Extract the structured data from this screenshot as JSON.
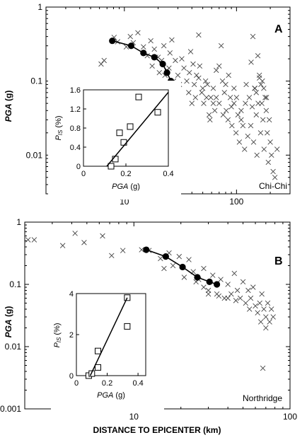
{
  "chart_data": [
    {
      "panel": "A",
      "type": "scatter",
      "annotation": "Chi-Chi",
      "xscale": "log",
      "yscale": "log",
      "xlim": [
        2,
        300
      ],
      "ylim": [
        0.003,
        1
      ],
      "xticks": [
        10,
        100
      ],
      "yticks": [
        1,
        0.1,
        0.01
      ],
      "ylabel": "PGA (g)",
      "grid": false,
      "series": [
        {
          "kind": "crosses",
          "points": [
            [
              6.2,
              0.17
            ],
            [
              6.6,
              0.19
            ],
            [
              8.1,
              0.39
            ],
            [
              8.7,
              0.34
            ],
            [
              10.4,
              0.29
            ],
            [
              11.3,
              0.4
            ],
            [
              12,
              0.33
            ],
            [
              13.2,
              0.45
            ],
            [
              14.8,
              0.29
            ],
            [
              16,
              0.22
            ],
            [
              17.2,
              0.35
            ],
            [
              17.7,
              0.16
            ],
            [
              18.5,
              0.27
            ],
            [
              19,
              0.21
            ],
            [
              20,
              0.21
            ],
            [
              20.5,
              0.13
            ],
            [
              21.5,
              0.19
            ],
            [
              22.5,
              0.3
            ],
            [
              23,
              0.12
            ],
            [
              24,
              0.14
            ],
            [
              25,
              0.15
            ],
            [
              25.5,
              0.24
            ],
            [
              26.5,
              0.36
            ],
            [
              27.5,
              0.1
            ],
            [
              28.5,
              0.19
            ],
            [
              30,
              0.12
            ],
            [
              31,
              0.09
            ],
            [
              32.5,
              0.2
            ],
            [
              34,
              0.15
            ],
            [
              36,
              0.1
            ],
            [
              37.5,
              0.07
            ],
            [
              39,
              0.25
            ],
            [
              41,
              0.17
            ],
            [
              42,
              0.09
            ],
            [
              44,
              0.12
            ],
            [
              46,
              0.42
            ],
            [
              47,
              0.16
            ],
            [
              49,
              0.07
            ],
            [
              51,
              0.05
            ],
            [
              53,
              0.1
            ],
            [
              55,
              0.09
            ],
            [
              57,
              0.035
            ],
            [
              59,
              0.06
            ],
            [
              62,
              0.08
            ],
            [
              64,
              0.04
            ],
            [
              66,
              0.14
            ],
            [
              70,
              0.05
            ],
            [
              73,
              0.3
            ],
            [
              76,
              0.035
            ],
            [
              78,
              0.07
            ],
            [
              81,
              0.04
            ],
            [
              84,
              0.03
            ],
            [
              88,
              0.06
            ],
            [
              91,
              0.025
            ],
            [
              95,
              0.05
            ],
            [
              99,
              0.02
            ],
            [
              103,
              0.035
            ],
            [
              106,
              0.015
            ],
            [
              110,
              0.04
            ],
            [
              114,
              0.025
            ],
            [
              118,
              0.012
            ],
            [
              122,
              0.09
            ],
            [
              126,
              0.018
            ],
            [
              130,
              0.06
            ],
            [
              134,
              0.025
            ],
            [
              138,
              0.045
            ],
            [
              142,
              0.015
            ],
            [
              146,
              0.08
            ],
            [
              150,
              0.035
            ],
            [
              152,
              0.01
            ],
            [
              156,
              0.05
            ],
            [
              160,
              0.11
            ],
            [
              164,
              0.02
            ],
            [
              168,
              0.05
            ],
            [
              172,
              0.03
            ],
            [
              176,
              0.012
            ],
            [
              180,
              0.06
            ],
            [
              184,
              0.04
            ],
            [
              188,
              0.02
            ],
            [
              192,
              0.008
            ],
            [
              196,
              0.03
            ],
            [
              200,
              0.015
            ],
            [
              205,
              0.01
            ],
            [
              212,
              0.006
            ],
            [
              220,
              0.005
            ],
            [
              230,
              0.012
            ],
            [
              140,
              0.4
            ],
            [
              135,
              0.18
            ],
            [
              155,
              0.22
            ],
            [
              160,
              0.12
            ],
            [
              145,
              0.08
            ],
            [
              150,
              0.07
            ],
            [
              165,
              0.09
            ],
            [
              170,
              0.1
            ],
            [
              175,
              0.08
            ],
            [
              185,
              0.06
            ],
            [
              120,
              0.05
            ],
            [
              110,
              0.03
            ],
            [
              100,
              0.06
            ],
            [
              95,
              0.08
            ],
            [
              90,
              0.045
            ],
            [
              85,
              0.12
            ],
            [
              80,
              0.09
            ],
            [
              75,
              0.1
            ],
            [
              70,
              0.16
            ],
            [
              66,
              0.06
            ],
            [
              62,
              0.05
            ],
            [
              58,
              0.03
            ],
            [
              54,
              0.06
            ],
            [
              50,
              0.08
            ],
            [
              46,
              0.11
            ],
            [
              43,
              0.06
            ],
            [
              40,
              0.05
            ],
            [
              38,
              0.13
            ]
          ]
        },
        {
          "kind": "line-with-dots",
          "points": [
            [
              7.8,
              0.35
            ],
            [
              11.5,
              0.3
            ],
            [
              14.8,
              0.24
            ],
            [
              18.5,
              0.21
            ],
            [
              22,
              0.17
            ],
            [
              24,
              0.13
            ],
            [
              26,
              0.1
            ]
          ]
        }
      ],
      "inset": {
        "type": "scatter",
        "xlabel": "PGA (g)",
        "ylabel": "PIs (%)",
        "xlim": [
          0,
          0.4
        ],
        "ylim": [
          0,
          1.6
        ],
        "xticks": [
          0,
          0.2,
          0.4
        ],
        "yticks": [
          0,
          0.4,
          0.8,
          1.2,
          1.6
        ],
        "points": [
          [
            0.13,
            0.0
          ],
          [
            0.15,
            0.15
          ],
          [
            0.17,
            0.7
          ],
          [
            0.19,
            0.5
          ],
          [
            0.22,
            0.83
          ],
          [
            0.26,
            1.45
          ],
          [
            0.35,
            1.13
          ]
        ],
        "fit_line": [
          [
            0.11,
            0.0
          ],
          [
            0.4,
            1.55
          ]
        ]
      }
    },
    {
      "panel": "B",
      "type": "scatter",
      "annotation": "Northridge",
      "xscale": "log",
      "yscale": "log",
      "xlim": [
        2,
        100
      ],
      "ylim": [
        0.001,
        1
      ],
      "xticks": [
        10,
        100
      ],
      "yticks": [
        1,
        0.1,
        0.01,
        0.001
      ],
      "ylabel": "PGA (g)",
      "xlabel": "DISTANCE TO EPICENTER (km)",
      "grid": false,
      "series": [
        {
          "kind": "crosses",
          "points": [
            [
              2.1,
              0.52
            ],
            [
              2.3,
              0.52
            ],
            [
              3.5,
              0.42
            ],
            [
              4.2,
              0.66
            ],
            [
              4.8,
              0.47
            ],
            [
              6.3,
              0.6
            ],
            [
              7.2,
              0.29
            ],
            [
              8.5,
              0.35
            ],
            [
              11.2,
              0.36
            ],
            [
              12.5,
              0.35
            ],
            [
              14.8,
              0.26
            ],
            [
              15.6,
              0.18
            ],
            [
              16.8,
              0.32
            ],
            [
              17.8,
              0.2
            ],
            [
              19.5,
              0.28
            ],
            [
              21,
              0.13
            ],
            [
              22.5,
              0.25
            ],
            [
              24,
              0.16
            ],
            [
              26,
              0.12
            ],
            [
              28,
              0.18
            ],
            [
              30,
              0.08
            ],
            [
              32,
              0.14
            ],
            [
              34,
              0.07
            ],
            [
              36,
              0.12
            ],
            [
              38,
              0.06
            ],
            [
              40,
              0.1
            ],
            [
              42,
              0.07
            ],
            [
              44,
              0.15
            ],
            [
              46,
              0.08
            ],
            [
              48,
              0.06
            ],
            [
              50,
              0.11
            ],
            [
              52,
              0.05
            ],
            [
              54,
              0.08
            ],
            [
              56,
              0.06
            ],
            [
              58,
              0.09
            ],
            [
              60,
              0.045
            ],
            [
              62,
              0.035
            ],
            [
              64,
              0.05
            ],
            [
              66,
              0.07
            ],
            [
              68,
              0.04
            ],
            [
              70,
              0.03
            ],
            [
              72,
              0.05
            ],
            [
              74,
              0.025
            ],
            [
              76,
              0.04
            ],
            [
              78,
              0.03
            ],
            [
              67,
              0.0045
            ],
            [
              55,
              0.04
            ],
            [
              45,
              0.055
            ],
            [
              40,
              0.06
            ],
            [
              35,
              0.065
            ],
            [
              30,
              0.07
            ],
            [
              28,
              0.09
            ],
            [
              25,
              0.11
            ],
            [
              65,
              0.025
            ],
            [
              70,
              0.02
            ]
          ]
        },
        {
          "kind": "line-with-dots",
          "points": [
            [
              12,
              0.36
            ],
            [
              16,
              0.28
            ],
            [
              20.5,
              0.19
            ],
            [
              25.5,
              0.13
            ],
            [
              30.5,
              0.11
            ],
            [
              34,
              0.1
            ]
          ]
        }
      ],
      "inset": {
        "type": "scatter",
        "xlabel": "PGA (g)",
        "ylabel": "PIs (%)",
        "xlim": [
          0,
          0.45
        ],
        "ylim": [
          0,
          4
        ],
        "xticks": [
          0,
          0.2,
          0.4
        ],
        "yticks": [
          0,
          2,
          4
        ],
        "points": [
          [
            0.08,
            0.0
          ],
          [
            0.1,
            0.1
          ],
          [
            0.14,
            0.4
          ],
          [
            0.14,
            1.2
          ],
          [
            0.33,
            3.8
          ],
          [
            0.33,
            2.4
          ]
        ],
        "fit_line": [
          [
            0.09,
            0.0
          ],
          [
            0.33,
            3.8
          ]
        ]
      }
    }
  ]
}
